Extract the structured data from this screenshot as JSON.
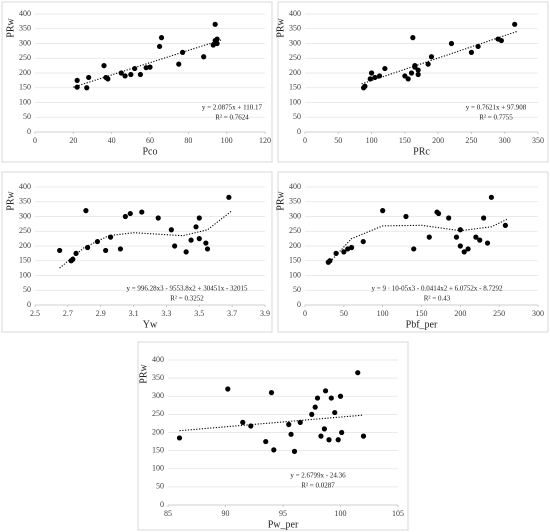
{
  "chart_data": [
    {
      "type": "scatter",
      "x_label": "Pco",
      "y_label": "PRw",
      "equation": "y = 2.0875x + 110.17",
      "r_squared": "R² = 0.7624",
      "x": [
        22,
        22,
        27,
        28,
        36,
        37,
        38,
        45,
        47,
        50,
        52,
        55,
        58,
        60,
        65,
        66,
        75,
        77,
        88,
        93,
        94,
        94,
        95,
        95
      ],
      "values": [
        175,
        152,
        150,
        185,
        225,
        185,
        180,
        200,
        190,
        195,
        215,
        195,
        218,
        220,
        290,
        320,
        230,
        270,
        255,
        295,
        365,
        310,
        300,
        315
      ],
      "trend_x": [
        20,
        97
      ],
      "trend_y": [
        152,
        312
      ],
      "xlim": [
        0,
        120
      ],
      "xticks": [
        0,
        20,
        40,
        60,
        80,
        100,
        120
      ],
      "ylim": [
        0,
        400
      ],
      "yticks": [
        0,
        50,
        100,
        150,
        200,
        250,
        300,
        350,
        400
      ],
      "grid": true,
      "color": "#000000"
    },
    {
      "type": "scatter",
      "x_label": "PRc",
      "y_label": "PRw",
      "equation": "y = 0.7621x + 97.908",
      "r_squared": "R² = 0.7755",
      "x": [
        88,
        90,
        98,
        100,
        105,
        112,
        120,
        150,
        155,
        160,
        162,
        165,
        165,
        170,
        170,
        185,
        190,
        220,
        250,
        260,
        290,
        295,
        315
      ],
      "values": [
        150,
        155,
        180,
        200,
        185,
        190,
        215,
        190,
        180,
        200,
        320,
        225,
        220,
        195,
        210,
        230,
        255,
        300,
        270,
        290,
        315,
        310,
        365
      ],
      "trend_x": [
        85,
        320
      ],
      "trend_y": [
        163,
        342
      ],
      "xlim": [
        0,
        350
      ],
      "xticks": [
        0,
        50,
        100,
        150,
        200,
        250,
        300,
        350
      ],
      "ylim": [
        0,
        400
      ],
      "yticks": [
        0,
        50,
        100,
        150,
        200,
        250,
        300,
        350,
        400
      ],
      "grid": true,
      "color": "#000000"
    },
    {
      "type": "scatter",
      "x_label": "Yw",
      "y_label": "PRw",
      "equation": "y = 996.28x3 - 9553.8x2 + 30451x - 32015",
      "r_squared": "R² = 0.3252",
      "x": [
        2.65,
        2.72,
        2.73,
        2.75,
        2.81,
        2.82,
        2.88,
        2.93,
        2.96,
        3.02,
        3.05,
        3.08,
        3.15,
        3.25,
        3.33,
        3.35,
        3.42,
        3.45,
        3.48,
        3.5,
        3.5,
        3.54,
        3.55,
        3.68
      ],
      "values": [
        185,
        150,
        155,
        175,
        320,
        195,
        215,
        185,
        230,
        190,
        300,
        310,
        315,
        295,
        255,
        200,
        180,
        220,
        265,
        295,
        225,
        210,
        190,
        365
      ],
      "trend_x": [
        2.65,
        2.8,
        2.95,
        3.1,
        3.25,
        3.4,
        3.55,
        3.7
      ],
      "trend_y": [
        125,
        195,
        235,
        245,
        240,
        235,
        255,
        320
      ],
      "xlim": [
        2.5,
        3.9
      ],
      "xticks": [
        2.5,
        2.7,
        2.9,
        3.1,
        3.3,
        3.5,
        3.7,
        3.9
      ],
      "ylim": [
        0,
        400
      ],
      "yticks": [
        0,
        50,
        100,
        150,
        200,
        250,
        300,
        350,
        400
      ],
      "grid": true,
      "color": "#000000"
    },
    {
      "type": "scatter",
      "x_label": "Pbf_per",
      "y_label": "PRw",
      "equation": "y = 9 · 10-05x3 - 0.0414x2 + 6.0752x - 8.7292",
      "r_squared": "R² = 0.43",
      "x": [
        30,
        32,
        40,
        50,
        55,
        60,
        75,
        100,
        130,
        140,
        160,
        170,
        172,
        185,
        195,
        200,
        200,
        205,
        210,
        220,
        225,
        230,
        235,
        240,
        258
      ],
      "values": [
        145,
        150,
        175,
        180,
        190,
        195,
        215,
        320,
        300,
        190,
        230,
        315,
        310,
        295,
        230,
        200,
        255,
        180,
        190,
        230,
        220,
        295,
        210,
        365,
        270
      ],
      "trend_x": [
        30,
        60,
        100,
        150,
        200,
        240,
        260
      ],
      "trend_y": [
        140,
        225,
        268,
        270,
        252,
        265,
        290
      ],
      "xlim": [
        0,
        300
      ],
      "xticks": [
        0,
        50,
        100,
        150,
        200,
        250,
        300
      ],
      "ylim": [
        0,
        400
      ],
      "yticks": [
        0,
        50,
        100,
        150,
        200,
        250,
        300,
        350,
        400
      ],
      "grid": true,
      "color": "#000000"
    },
    {
      "type": "scatter",
      "x_label": "Pw_per",
      "y_label": "PRw",
      "equation": "y = 2.6799x - 24.36",
      "r_squared": "R² = 0.0287",
      "x": [
        86,
        90.2,
        91.5,
        92.2,
        93.5,
        94,
        94.2,
        95.5,
        95.7,
        96,
        96.5,
        97.5,
        97.8,
        98,
        98.3,
        98.6,
        98.7,
        99,
        99.2,
        99.5,
        99.8,
        100,
        100.1,
        101.5,
        102
      ],
      "values": [
        185,
        320,
        228,
        218,
        175,
        310,
        152,
        222,
        195,
        148,
        228,
        250,
        270,
        295,
        190,
        210,
        315,
        180,
        295,
        255,
        180,
        300,
        200,
        365,
        190
      ],
      "trend_x": [
        86,
        102
      ],
      "trend_y": [
        205,
        248
      ],
      "xlim": [
        85,
        105
      ],
      "xticks": [
        85,
        90,
        95,
        100,
        105
      ],
      "ylim": [
        0,
        400
      ],
      "yticks": [
        0,
        50,
        100,
        150,
        200,
        250,
        300,
        350,
        400
      ],
      "grid": true,
      "color": "#000000"
    }
  ]
}
